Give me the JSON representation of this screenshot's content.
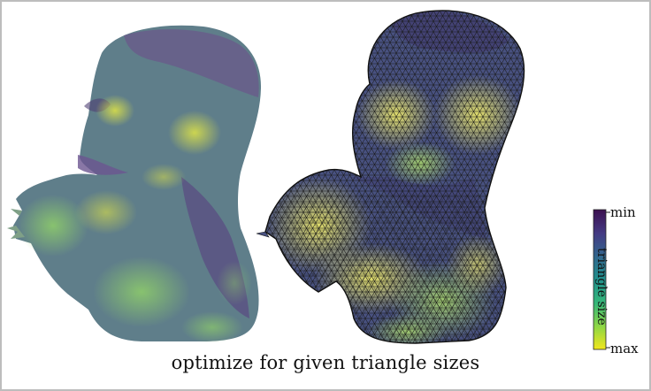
{
  "caption": "optimize for given triangle sizes",
  "colorbar": {
    "title": "triangle size",
    "min_label": "min",
    "max_label": "max",
    "colormap": "viridis",
    "colors": [
      "#3b0f4f",
      "#443a83",
      "#31688e",
      "#21918c",
      "#35b779",
      "#90d743",
      "#f2e61c"
    ]
  },
  "panels": [
    {
      "name": "smooth-shaded-head"
    },
    {
      "name": "wireframe-triangulated-head"
    }
  ],
  "colors": {
    "frame_border": "#bdbdbd",
    "mesh_edge": "#1a1a1a"
  }
}
